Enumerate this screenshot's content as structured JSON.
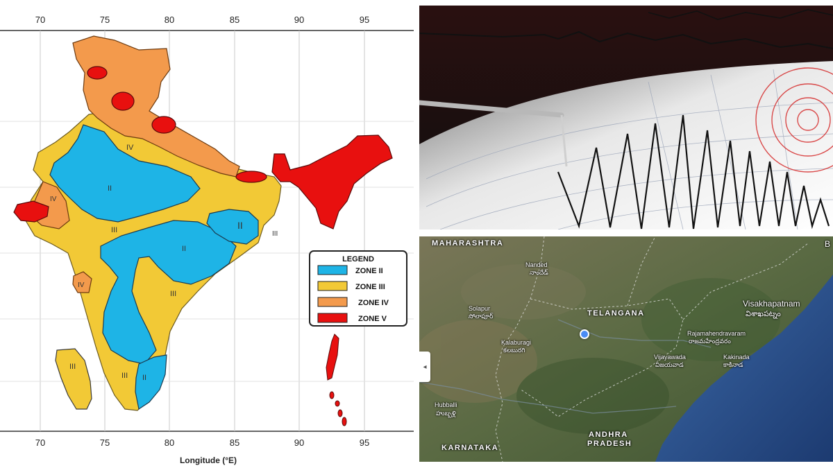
{
  "zone_map": {
    "lon_ticks": [
      "70",
      "75",
      "80",
      "85",
      "90",
      "95"
    ],
    "axis_label": "Longitude (°E)",
    "legend": {
      "title": "LEGEND",
      "items": [
        {
          "label": "ZONE II",
          "color": "#1eb4e6"
        },
        {
          "label": "ZONE III",
          "color": "#f2c936"
        },
        {
          "label": "ZONE IV",
          "color": "#f39a4c"
        },
        {
          "label": "ZONE V",
          "color": "#e8100f"
        }
      ]
    },
    "region_labels": [
      "II",
      "II",
      "II",
      "II",
      "III",
      "III",
      "III",
      "III",
      "III",
      "IV",
      "IV",
      "IV"
    ]
  },
  "satellite_map": {
    "states": [
      "MAHARASHTRA",
      "TELANGANA",
      "KARNATAKA",
      "ANDHRA",
      "PRADESH"
    ],
    "cities": [
      {
        "name": "Nanded",
        "local": "నాందేడ్"
      },
      {
        "name": "Solapur",
        "local": "సోలాపూర్"
      },
      {
        "name": "Kalaburagi",
        "local": "కలబురగి"
      },
      {
        "name": "Hubballi",
        "local": "హుబ్బళ్లి"
      },
      {
        "name": "Vijayawada",
        "local": "విజయవాడ"
      },
      {
        "name": "Rajamahendravaram",
        "local": "రాజమహేంద్రవరం"
      },
      {
        "name": "Kakinada",
        "local": "కాకినాడ"
      },
      {
        "name": "Visakhapatnam",
        "local": "విశాఖపట్నం"
      }
    ],
    "edge_letter": "B",
    "collapse_glyph": "◂"
  },
  "colors": {
    "zone2": "#1eb4e6",
    "zone3": "#f2c936",
    "zone4": "#f39a4c",
    "zone5": "#e8100f",
    "sea": "#2a4f8c",
    "land": "#5a6a43"
  }
}
